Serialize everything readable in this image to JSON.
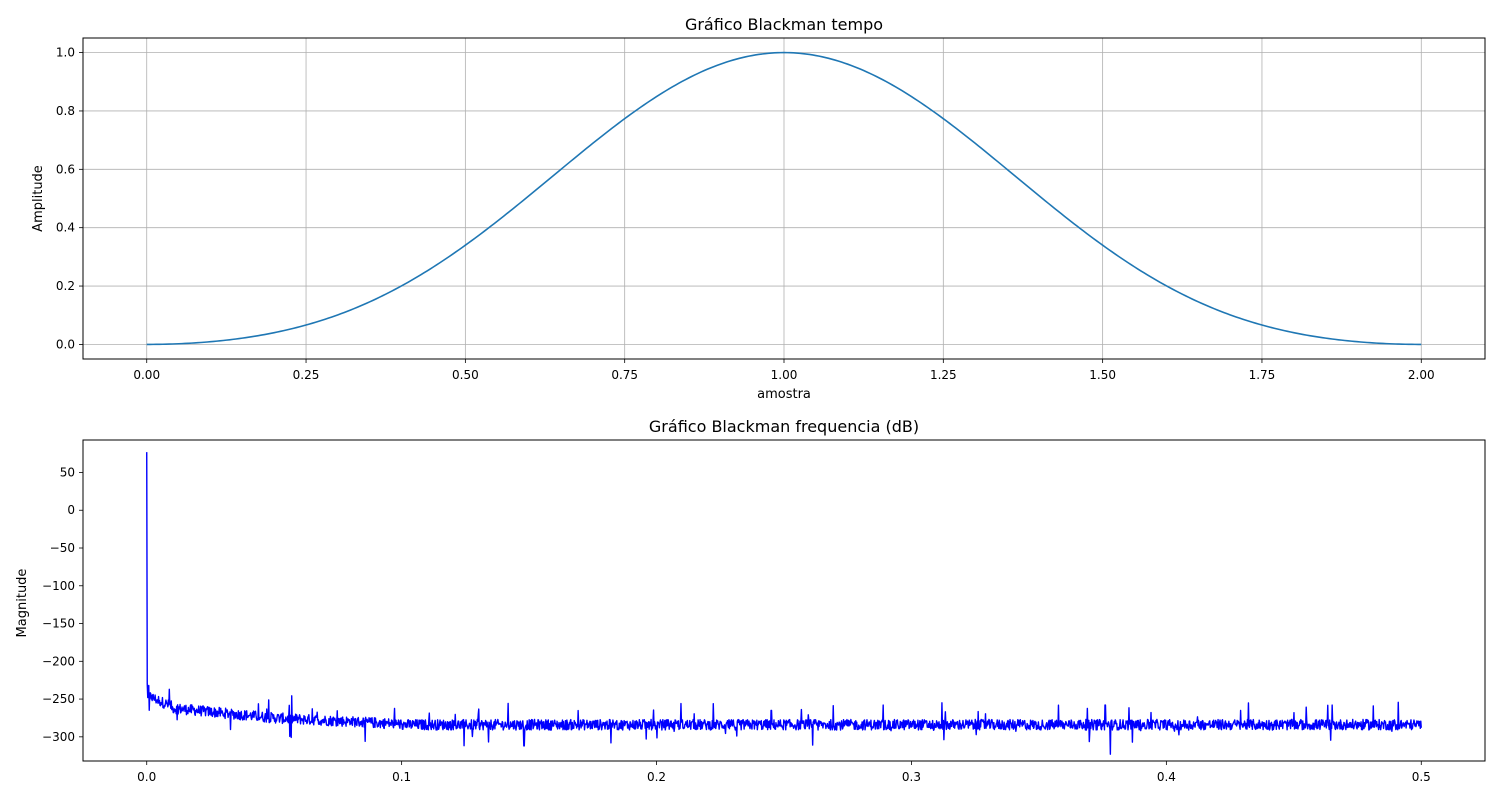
{
  "chart_data": [
    {
      "type": "line",
      "title": "Gráfico Blackman tempo",
      "xlabel": "amostra",
      "ylabel": "Amplitude",
      "xlim": [
        -0.1,
        2.1
      ],
      "ylim": [
        -0.05,
        1.05
      ],
      "grid": true,
      "x_ticks": [
        0.0,
        0.25,
        0.5,
        0.75,
        1.0,
        1.25,
        1.5,
        1.75,
        2.0
      ],
      "x_tick_labels": [
        "0.00",
        "0.25",
        "0.50",
        "0.75",
        "1.00",
        "1.25",
        "1.50",
        "1.75",
        "2.00"
      ],
      "y_ticks": [
        0.0,
        0.2,
        0.4,
        0.6,
        0.8,
        1.0
      ],
      "y_tick_labels": [
        "0.0",
        "0.2",
        "0.4",
        "0.6",
        "0.8",
        "1.0"
      ],
      "series": [
        {
          "color": "#1f77b4",
          "x": [
            0.0,
            0.1,
            0.2,
            0.25,
            0.3,
            0.4,
            0.5,
            0.6,
            0.7,
            0.75,
            0.8,
            0.9,
            1.0,
            1.1,
            1.2,
            1.25,
            1.3,
            1.4,
            1.5,
            1.6,
            1.7,
            1.75,
            1.8,
            1.9,
            2.0
          ],
          "y": [
            0.0,
            0.011,
            0.044,
            0.066,
            0.102,
            0.2,
            0.34,
            0.51,
            0.68,
            0.77,
            0.85,
            0.96,
            1.0,
            0.96,
            0.85,
            0.77,
            0.68,
            0.51,
            0.34,
            0.2,
            0.102,
            0.066,
            0.044,
            0.011,
            0.0
          ]
        }
      ]
    },
    {
      "type": "line",
      "title": "Gráfico Blackman frequencia (dB)",
      "xlabel": "",
      "ylabel": "Magnitude",
      "xlim": [
        -0.025,
        0.525
      ],
      "ylim": [
        -332,
        93
      ],
      "grid": false,
      "x_ticks": [
        0.0,
        0.1,
        0.2,
        0.3,
        0.4,
        0.5
      ],
      "x_tick_labels": [
        "0.0",
        "0.1",
        "0.2",
        "0.3",
        "0.4",
        "0.5"
      ],
      "y_ticks": [
        50,
        0,
        -50,
        -100,
        -150,
        -200,
        -250,
        -300
      ],
      "y_tick_labels": [
        "50",
        "0",
        "−50",
        "−100",
        "−150",
        "−200",
        "−250",
        "−300"
      ],
      "series": [
        {
          "color": "#0000ff",
          "x": [
            0.0,
            0.0002,
            0.0004,
            0.0008,
            0.002,
            0.005,
            0.01,
            0.02,
            0.03,
            0.05,
            0.065,
            0.08,
            0.1,
            0.12,
            0.13,
            0.148,
            0.17,
            0.2,
            0.245,
            0.28,
            0.312,
            0.35,
            0.376,
            0.378,
            0.4,
            0.43,
            0.465,
            0.47,
            0.5
          ],
          "y": [
            77,
            0,
            -200,
            -232,
            -245,
            -252,
            -260,
            -268,
            -272,
            -275,
            -263,
            -280,
            -283,
            -285,
            -270,
            -312,
            -285,
            -286,
            -265,
            -288,
            -255,
            -287,
            -258,
            -323,
            -290,
            -287,
            -258,
            -285,
            -288
          ]
        }
      ]
    }
  ]
}
